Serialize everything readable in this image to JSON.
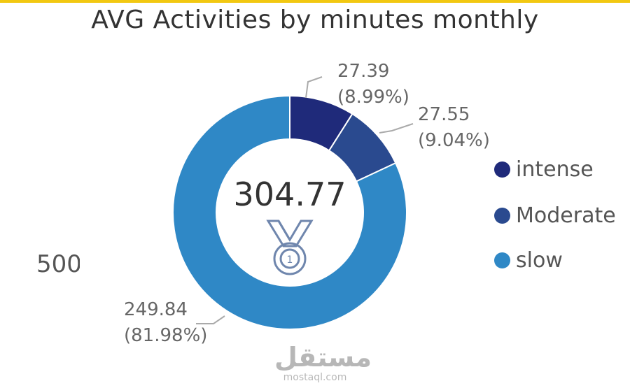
{
  "chart_data": {
    "type": "pie",
    "title": "AVG Activities by minutes monthly",
    "center_value": "304.77",
    "slices": [
      {
        "name": "intense",
        "value": 27.39,
        "value_label": "27.39",
        "percent_label": "(8.99%)",
        "color": "#1f2a7a"
      },
      {
        "name": "Moderate",
        "value": 27.55,
        "value_label": "27.55",
        "percent_label": "(9.04%)",
        "color": "#2a4a8f"
      },
      {
        "name": "slow",
        "value": 249.84,
        "value_label": "249.84",
        "percent_label": "(81.98%)",
        "color": "#2f88c6"
      }
    ],
    "legend_placement": "right"
  },
  "edge_label": "500",
  "center_icon": "medal-icon",
  "watermark": {
    "main": "مستقل",
    "sub": "mostaql.com"
  },
  "colors": {
    "accent_bar": "#f2c811",
    "leader_line": "#aaaaaa"
  }
}
